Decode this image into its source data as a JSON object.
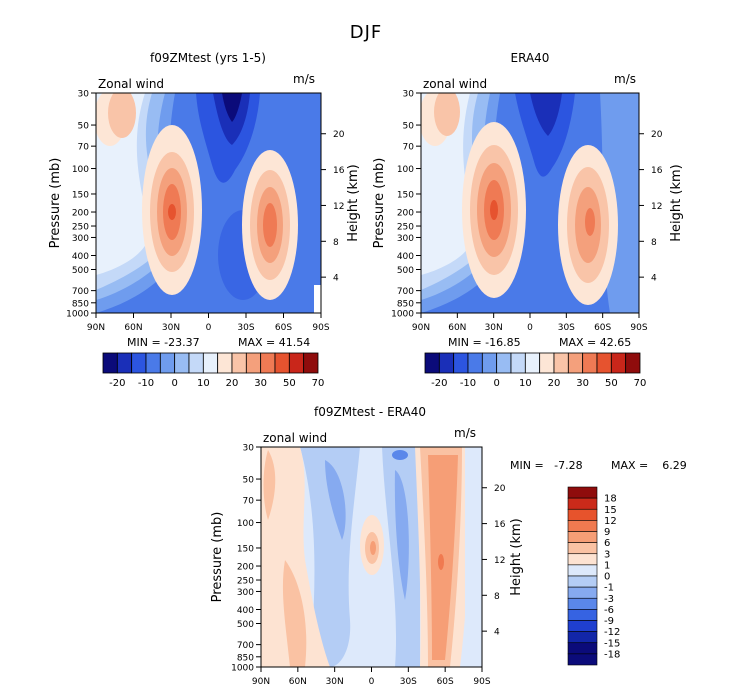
{
  "figure_title": "DJF",
  "chart_data": [
    {
      "type": "heatmap",
      "title": "f09ZMtest (yrs 1-5)",
      "top_left_label": "Zonal wind",
      "units": "m/s",
      "ylabel": "Pressure (mb)",
      "ylabel_right": "Height (km)",
      "x_ticks": [
        "90N",
        "60N",
        "30N",
        "0",
        "30S",
        "60S",
        "90S"
      ],
      "y_ticks": [
        "30",
        "50",
        "70",
        "100",
        "150",
        "200",
        "250",
        "300",
        "400",
        "500",
        "700",
        "850",
        "1000"
      ],
      "y_ticks_right": [
        "20",
        "16",
        "12",
        "8",
        "4"
      ],
      "ylim": [
        1000,
        30
      ],
      "scale": "log-pressure",
      "min_label": "MIN = -23.37",
      "max_label": "MAX = 41.54",
      "min": -23.37,
      "max": 41.54,
      "colorbar_labels": [
        "-20",
        "-10",
        "0",
        "10",
        "20",
        "30",
        "50",
        "70"
      ]
    },
    {
      "type": "heatmap",
      "title": "ERA40",
      "top_left_label": "zonal wind",
      "units": "m/s",
      "ylabel": "Pressure (mb)",
      "ylabel_right": "Height (km)",
      "x_ticks": [
        "90N",
        "60N",
        "30N",
        "0",
        "30S",
        "60S",
        "90S"
      ],
      "y_ticks": [
        "30",
        "50",
        "70",
        "100",
        "150",
        "200",
        "250",
        "300",
        "400",
        "500",
        "700",
        "850",
        "1000"
      ],
      "y_ticks_right": [
        "20",
        "16",
        "12",
        "8",
        "4"
      ],
      "ylim": [
        1000,
        30
      ],
      "scale": "log-pressure",
      "min_label": "MIN = -16.85",
      "max_label": "MAX = 42.65",
      "min": -16.85,
      "max": 42.65,
      "colorbar_labels": [
        "-20",
        "-10",
        "0",
        "10",
        "20",
        "30",
        "50",
        "70"
      ]
    },
    {
      "type": "heatmap",
      "title": "f09ZMtest - ERA40",
      "top_left_label": "zonal wind",
      "units": "m/s",
      "ylabel": "Pressure (mb)",
      "ylabel_right": "Height (km)",
      "x_ticks": [
        "90N",
        "60N",
        "30N",
        "0",
        "30S",
        "60S",
        "90S"
      ],
      "y_ticks": [
        "30",
        "50",
        "70",
        "100",
        "150",
        "200",
        "250",
        "300",
        "400",
        "500",
        "700",
        "850",
        "1000"
      ],
      "y_ticks_right": [
        "20",
        "16",
        "12",
        "8",
        "4"
      ],
      "ylim": [
        1000,
        30
      ],
      "scale": "log-pressure",
      "min_label": "MIN =   -7.28",
      "max_label": "MAX =    6.29",
      "min": -7.28,
      "max": 6.29,
      "colorbar_labels": [
        "18",
        "15",
        "12",
        "9",
        "6",
        "3",
        "1",
        "0",
        "-1",
        "-3",
        "-6",
        "-9",
        "-12",
        "-15",
        "-18"
      ]
    }
  ],
  "colors": {
    "abs_scale": [
      "#0b0b7a",
      "#1a2fb8",
      "#2c55e0",
      "#4a7ae8",
      "#6f9cee",
      "#98bcf3",
      "#c4d9f8",
      "#e8f1fc",
      "#fde6d6",
      "#f9c4a8",
      "#f4a07c",
      "#ef7a54",
      "#e6532f",
      "#c9261a",
      "#8f0c0c"
    ],
    "diff_scale": [
      "#0b0b7a",
      "#1226a8",
      "#1f3fd0",
      "#3663e2",
      "#5a87ea",
      "#86aaf0",
      "#b4cdf5",
      "#dde9fb",
      "#fde3d2",
      "#fac2a3",
      "#f69e76",
      "#f07a50",
      "#e7532c",
      "#cb2a1a",
      "#8f0c0c"
    ]
  }
}
